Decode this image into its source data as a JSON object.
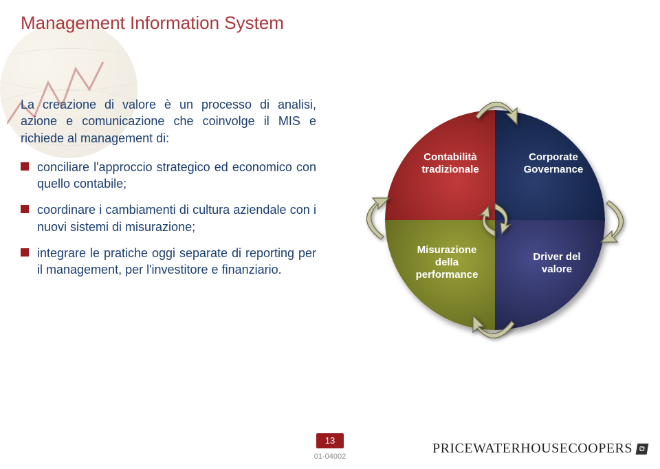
{
  "colors": {
    "title": "#a8383e",
    "body_text": "#1a3e6f",
    "bullet_square": "#9a1b1e",
    "quad_tl_bg": "radial-gradient(circle at 65% 65%, #c23a3a 0%, #7a1818 100%)",
    "quad_tr_bg": "radial-gradient(circle at 35% 65%, #2a3e6f 0%, #0c1a3a 100%)",
    "quad_bl_bg": "radial-gradient(circle at 65% 35%, #9aa23a 0%, #5a5f1a 100%)",
    "quad_br_bg": "radial-gradient(circle at 35% 35%, #464a8a 0%, #1a1d3f 100%)",
    "quad_tl_text": "#ffffff",
    "quad_tr_text": "#ffffff",
    "quad_bl_text": "#ffffff",
    "quad_br_text": "#ffffff",
    "arrow_fill": "#c9c7a4",
    "arrow_stroke": "#6a6a4a",
    "page_box_bg": "#9a1b1e"
  },
  "title": "Management Information System",
  "intro": "La creazione di valore è un processo di analisi, azione e comunicazione che coinvolge il MIS e richiede al management di:",
  "bullets": [
    "conciliare l'approccio strategico ed economico con quello contabile;",
    "coordinare i cambiamenti di cultura aziendale con i nuovi sistemi di misurazione;",
    "integrare le pratiche oggi separate di reporting per il management, per l'investitore e finanziario."
  ],
  "quadrants": {
    "tl": "Contabilità\ntradizionale",
    "tr": "Corporate\nGovernance",
    "bl": "Misurazione\ndella\nperformance",
    "br": "Driver del\nvalore"
  },
  "footer": {
    "page": "13",
    "code": "01-04002",
    "brand_text": "PRICEWATERHOUSECOOPERS",
    "brand_badge": "⧉"
  },
  "chart_decoration": {
    "points": [
      [
        0,
        120
      ],
      [
        20,
        90
      ],
      [
        40,
        110
      ],
      [
        60,
        60
      ],
      [
        80,
        95
      ],
      [
        100,
        40
      ],
      [
        120,
        70
      ],
      [
        140,
        30
      ]
    ],
    "stroke": "#a8383e"
  }
}
